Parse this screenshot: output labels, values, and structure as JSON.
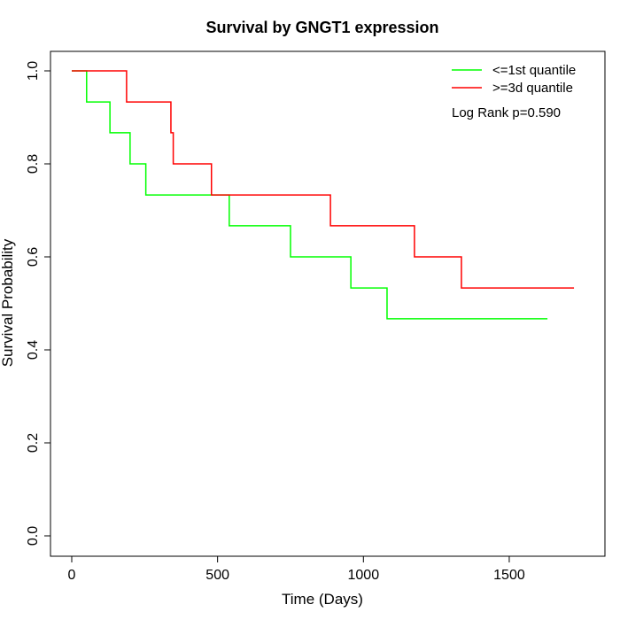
{
  "chart_data": {
    "type": "line",
    "title": "Survival by GNGT1 expression",
    "xlabel": "Time (Days)",
    "ylabel": "Survival Probability",
    "xlim": [
      0,
      1750
    ],
    "ylim": [
      0,
      1.0
    ],
    "xticks": [
      "0",
      "500",
      "1000",
      "1500"
    ],
    "xtick_values": [
      0,
      500,
      1000,
      1500
    ],
    "yticks": [
      "0.0",
      "0.2",
      "0.4",
      "0.6",
      "0.8",
      "1.0"
    ],
    "ytick_values": [
      0,
      0.2,
      0.4,
      0.6,
      0.8,
      1.0
    ],
    "grid": false,
    "legend_position": "top-right",
    "annotation": "Log Rank p=0.590",
    "series": [
      {
        "name": "<=1st quantile",
        "color": "#00ff00",
        "step": true,
        "x": [
          0,
          51,
          131,
          200,
          254,
          540,
          750,
          957,
          1081,
          1631
        ],
        "y": [
          1.0,
          0.933,
          0.867,
          0.8,
          0.733,
          0.667,
          0.6,
          0.533,
          0.467,
          0.467
        ]
      },
      {
        "name": ">=3d quantile",
        "color": "#ff0000",
        "step": true,
        "x": [
          0,
          188,
          340,
          348,
          479,
          887,
          1175,
          1336,
          1722
        ],
        "y": [
          1.0,
          0.933,
          0.867,
          0.8,
          0.733,
          0.667,
          0.6,
          0.533,
          0.533
        ]
      }
    ]
  }
}
